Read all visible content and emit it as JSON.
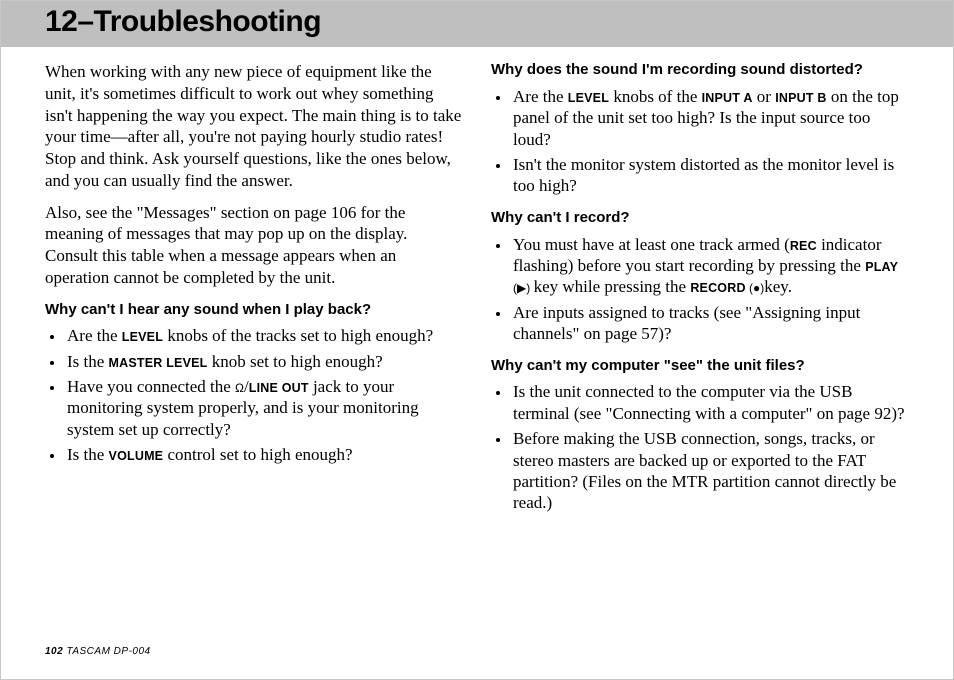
{
  "header": {
    "title": "12–Troubleshooting"
  },
  "colors": {
    "header_bg": "#bfbfbf",
    "page_bg": "#ffffff",
    "text": "#000000",
    "border": "#c8c8c8"
  },
  "paragraphs": {
    "intro1": "When working with any new piece of equipment like the unit, it's sometimes difficult to work out whey something isn't happening the way you expect. The main thing is to take your time—after all, you're not paying hourly studio rates! Stop and think. Ask yourself questions, like the ones below, and you can usually find the answer.",
    "intro2": "Also, see the \"Messages\" section on page 106 for the meaning of messages that may pop up on the display. Consult this table when a message appears when an operation cannot be completed by the unit."
  },
  "sections": {
    "q1": {
      "title": "Why can't I hear any sound when I play back?",
      "items": {
        "a": {
          "pre": "Are the ",
          "sc": "LEVEL",
          "post": " knobs of the tracks set to high enough?"
        },
        "b": {
          "pre": "Is the ",
          "sc": "MASTER LEVEL",
          "post": " knob set to high enough?"
        },
        "c": {
          "pre": "Have you connected the ",
          "sym": "Ω",
          "mid": "/",
          "sc": "LINE OUT",
          "post": " jack to your monitoring system properly, and is your monitoring system set up correctly?"
        },
        "d": {
          "pre": "Is the ",
          "sc": "VOLUME",
          "post": " control set to high enough?"
        }
      }
    },
    "q2": {
      "title": "Why does the sound I'm recording sound distorted?",
      "items": {
        "a": {
          "pre": "Are the ",
          "sc1": "LEVEL",
          "mid1": " knobs of the ",
          "sc2": "INPUT A",
          "mid2": " or ",
          "sc3": "INPUT B",
          "post": " on the top panel of the unit set too high? Is the input source too loud?"
        },
        "b": {
          "text": "Isn't the monitor system distorted as the monitor level is too high?"
        }
      }
    },
    "q3": {
      "title": "Why can't I record?",
      "items": {
        "a": {
          "pre": "You must have at least one track armed (",
          "sc1": "REC",
          "mid1": " indicator flashing) before you start recording by pressing the ",
          "sc2": "PLAY",
          "sym1": " (▶) ",
          "mid2": "key while pressing the ",
          "sc3": "RECORD",
          "sym2": " (●)",
          "post": "key."
        },
        "b": {
          "text": "Are inputs assigned to tracks (see \"Assigning input channels\" on page 57)?"
        }
      }
    },
    "q4": {
      "title": "Why can't my computer \"see\" the unit files?",
      "items": {
        "a": {
          "text": "Is the unit connected to the computer via the USB terminal (see \"Connecting with a computer\" on page 92)?"
        },
        "b": {
          "text": "Before making the USB connection, songs, tracks, or stereo masters are backed up or exported to the FAT partition? (Files on the MTR partition cannot directly be read.)"
        }
      }
    }
  },
  "footer": {
    "page_number": "102",
    "product": " TASCAM  DP-004"
  }
}
